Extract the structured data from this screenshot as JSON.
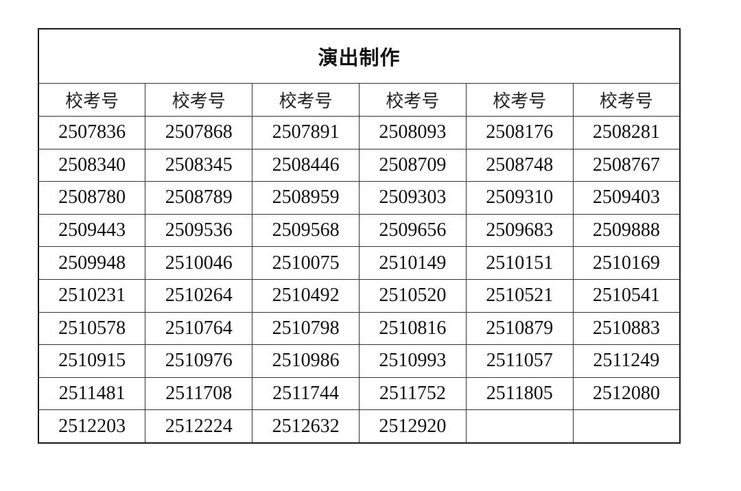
{
  "title": "演出制作",
  "headers": [
    "校考号",
    "校考号",
    "校考号",
    "校考号",
    "校考号",
    "校考号"
  ],
  "rows": [
    [
      "2507836",
      "2507868",
      "2507891",
      "2508093",
      "2508176",
      "2508281"
    ],
    [
      "2508340",
      "2508345",
      "2508446",
      "2508709",
      "2508748",
      "2508767"
    ],
    [
      "2508780",
      "2508789",
      "2508959",
      "2509303",
      "2509310",
      "2509403"
    ],
    [
      "2509443",
      "2509536",
      "2509568",
      "2509656",
      "2509683",
      "2509888"
    ],
    [
      "2509948",
      "2510046",
      "2510075",
      "2510149",
      "2510151",
      "2510169"
    ],
    [
      "2510231",
      "2510264",
      "2510492",
      "2510520",
      "2510521",
      "2510541"
    ],
    [
      "2510578",
      "2510764",
      "2510798",
      "2510816",
      "2510879",
      "2510883"
    ],
    [
      "2510915",
      "2510976",
      "2510986",
      "2510993",
      "2511057",
      "2511249"
    ],
    [
      "2511481",
      "2511708",
      "2511744",
      "2511752",
      "2511805",
      "2512080"
    ],
    [
      "2512203",
      "2512224",
      "2512632",
      "2512920",
      "",
      ""
    ]
  ]
}
